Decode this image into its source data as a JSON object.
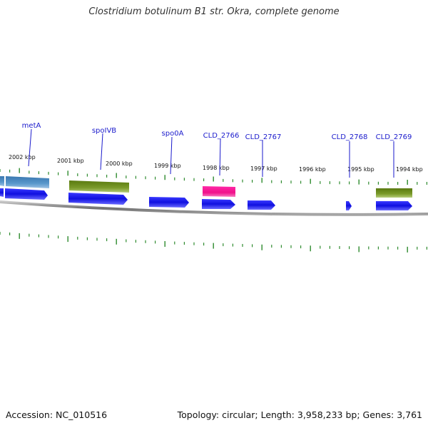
{
  "title": "Clostridium botulinum B1 str. Okra, complete genome",
  "footer": {
    "accession": "Accession: NC_010516",
    "summary": "Topology: circular; Length: 3,958,233 bp; Genes: 3,761"
  },
  "kbp_labels": [
    "2002 kbp",
    "2001 kbp",
    "2000 kbp",
    "1999 kbp",
    "1998 kbp",
    "1997 kbp",
    "1996 kbp",
    "1995 kbp",
    "1994 kbp"
  ],
  "gene_labels": [
    "metA",
    "spoIVB",
    "spo0A",
    "CLD_2766",
    "CLD_2767",
    "CLD_2768",
    "CLD_2769"
  ],
  "colors": {
    "cds_blue": "#1515e8",
    "steelblue_feature": "#4a8ac0",
    "olive_feature": "#6b8a20",
    "pink_feature": "#f0209a",
    "tick_green": "#2e8b2e",
    "backbone": "#808080",
    "label_blue": "#1a1acc"
  }
}
